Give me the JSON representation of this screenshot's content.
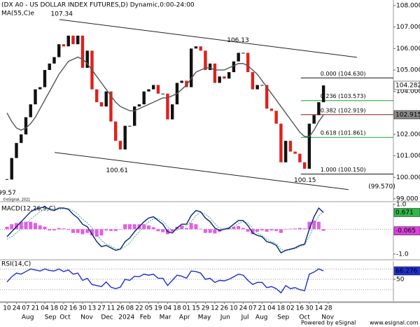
{
  "chart_data": [
    {
      "type": "line",
      "title": "(DX A0 - US DOLLAR INDEX FUTURES,D) Dynamic,0:00-24:00",
      "subtitle": "MA(55,C)e",
      "xlim": [
        -1.48,
        81.8
      ],
      "ylim": [
        98.9,
        108.26
      ],
      "yticks": [
        {
          "value": 99,
          "label": "99.000"
        },
        {
          "value": 100,
          "label": "100.000"
        },
        {
          "value": 101,
          "label": "101.000"
        },
        {
          "value": 102,
          "label": "102.000"
        },
        {
          "value": 103,
          "label": "103.000"
        },
        {
          "value": 104,
          "label": "104.000"
        },
        {
          "value": 105,
          "label": "105.000"
        },
        {
          "value": 106,
          "label": "106.000"
        },
        {
          "value": 107,
          "label": "107.000"
        },
        {
          "value": 108,
          "label": "108.000"
        }
      ],
      "xticks": [
        {
          "value": 0,
          "label": "10"
        },
        {
          "value": 2,
          "label": "24"
        },
        {
          "value": 4,
          "label": "07"
        },
        {
          "value": 6,
          "label": "21"
        },
        {
          "value": 8,
          "label": "04"
        },
        {
          "value": 10,
          "label": "18"
        },
        {
          "value": 12,
          "label": "02"
        },
        {
          "value": 14,
          "label": "16"
        },
        {
          "value": 16,
          "label": "30"
        },
        {
          "value": 18,
          "label": "13"
        },
        {
          "value": 20,
          "label": "27"
        },
        {
          "value": 22,
          "label": "11"
        },
        {
          "value": 24,
          "label": "26"
        },
        {
          "value": 26,
          "label": "08"
        },
        {
          "value": 28,
          "label": "22"
        },
        {
          "value": 30,
          "label": "05"
        },
        {
          "value": 32,
          "label": "19"
        },
        {
          "value": 34,
          "label": "04"
        },
        {
          "value": 36,
          "label": "18"
        },
        {
          "value": 38,
          "label": "01"
        },
        {
          "value": 40,
          "label": "15"
        },
        {
          "value": 42,
          "label": "29"
        },
        {
          "value": 44,
          "label": "12"
        },
        {
          "value": 46,
          "label": "26"
        },
        {
          "value": 48,
          "label": "10"
        },
        {
          "value": 50,
          "label": "24"
        },
        {
          "value": 52,
          "label": "07"
        },
        {
          "value": 54,
          "label": "21"
        },
        {
          "value": 56,
          "label": "04"
        },
        {
          "value": 58,
          "label": "18"
        },
        {
          "value": 60,
          "label": "02"
        },
        {
          "value": 62,
          "label": "16"
        },
        {
          "value": 64,
          "label": "30"
        },
        {
          "value": 66,
          "label": "14"
        },
        {
          "value": 68,
          "label": "28"
        }
      ],
      "month_labels": [
        {
          "value": 4.4,
          "label": "Aug"
        },
        {
          "value": 9.2,
          "label": "Sep"
        },
        {
          "value": 12.3,
          "label": "Oct"
        },
        {
          "value": 16.9,
          "label": "Nov"
        },
        {
          "value": 21.2,
          "label": "Dec"
        },
        {
          "value": 25.3,
          "label": "2024"
        },
        {
          "value": 29.3,
          "label": "Feb"
        },
        {
          "value": 33.5,
          "label": "Mar"
        },
        {
          "value": 37.6,
          "label": "Apr"
        },
        {
          "value": 41.8,
          "label": "May"
        },
        {
          "value": 46.2,
          "label": "Jun"
        },
        {
          "value": 50.4,
          "label": "Jul"
        },
        {
          "value": 53.9,
          "label": "Aug"
        },
        {
          "value": 58.5,
          "label": "Sep"
        },
        {
          "value": 63,
          "label": "Oct"
        },
        {
          "value": 67.9,
          "label": "Nov"
        }
      ],
      "x": [
        0,
        1,
        2,
        3,
        4,
        5,
        6,
        7,
        8,
        9,
        10,
        11,
        12,
        13,
        14,
        15,
        16,
        17,
        18,
        19,
        20,
        21,
        22,
        23,
        24,
        25,
        26,
        27,
        28,
        29,
        30,
        31,
        32,
        33,
        34,
        35,
        36,
        37,
        38,
        39,
        40,
        41,
        42,
        43,
        44,
        45,
        46,
        47,
        48,
        49,
        50,
        51,
        52,
        53,
        54,
        55,
        56,
        57,
        58,
        59,
        60,
        61,
        62,
        63,
        64,
        65,
        66,
        67
      ],
      "series": [
        {
          "style": "candles",
          "up_color": "#111111",
          "down_color": "#e0201c",
          "box_color": "#ffffff",
          "box_text": "#000000",
          "last_label": "104.282",
          "values": [
            99.9,
            100.9,
            101.6,
            102.0,
            102.8,
            103.4,
            104.1,
            104.2,
            105.0,
            105.3,
            105.6,
            106.2,
            106.1,
            106.6,
            106.2,
            106.6,
            105.1,
            105.9,
            104.1,
            103.5,
            103.3,
            104.0,
            102.6,
            101.7,
            101.3,
            102.4,
            102.4,
            103.3,
            103.4,
            104.0,
            104.1,
            104.3,
            103.9,
            103.9,
            102.7,
            103.4,
            104.4,
            104.5,
            104.2,
            106.0,
            106.1,
            105.9,
            105.0,
            105.3,
            104.4,
            104.7,
            104.6,
            104.9,
            105.4,
            105.8,
            105.8,
            104.9,
            104.1,
            104.3,
            104.3,
            103.2,
            103.1,
            102.5,
            100.7,
            101.7,
            101.2,
            101.1,
            100.7,
            100.4,
            102.5,
            102.9,
            103.5,
            104.282
          ]
        },
        {
          "style": "line",
          "color": "#555555",
          "box_color": "#8a8a8a",
          "box_text": "#ffffff",
          "last_label": "102.915",
          "values": [
            103.0,
            102.6,
            102.3,
            102.2,
            102.3,
            102.5,
            102.8,
            103.2,
            103.6,
            104.0,
            104.4,
            104.8,
            105.1,
            105.4,
            105.5,
            105.6,
            105.5,
            105.3,
            105.0,
            104.7,
            104.4,
            104.1,
            103.8,
            103.5,
            103.3,
            103.2,
            103.1,
            103.1,
            103.2,
            103.3,
            103.4,
            103.5,
            103.6,
            103.7,
            103.7,
            103.8,
            103.9,
            104.1,
            104.3,
            104.6,
            104.9,
            105.0,
            105.1,
            105.1,
            105.0,
            105.0,
            105.0,
            105.1,
            105.2,
            105.3,
            105.3,
            105.2,
            105.0,
            104.8,
            104.5,
            104.2,
            103.9,
            103.6,
            103.3,
            103.0,
            102.7,
            102.4,
            102.1,
            101.9,
            101.9,
            102.2,
            102.6,
            102.915
          ]
        }
      ],
      "trendlines": [
        {
          "x": [
            11.1,
            74.1
          ],
          "y": [
            107.35,
            105.59
          ],
          "color": "#222222"
        },
        {
          "x": [
            10.1,
            72.3
          ],
          "y": [
            101.16,
            99.43
          ],
          "color": "#222222"
        }
      ],
      "fib_start": 62.2,
      "fib": [
        {
          "value": 104.63,
          "label": "0.000 (104.630)",
          "color": "#111111"
        },
        {
          "value": 103.573,
          "label": "0.236 (103.573)",
          "color": "#1e9e3a"
        },
        {
          "value": 102.919,
          "label": "0.382 (102.919)",
          "color": "#8b1a1a"
        },
        {
          "value": 101.861,
          "label": "0.618 (101.861)",
          "color": "#1e9e3a"
        },
        {
          "value": 100.15,
          "label": "1.000 (100.150)",
          "color": "#111111"
        }
      ],
      "annotations": [
        {
          "label": "107.34",
          "value": 107.34,
          "x": 11.6,
          "place": "above"
        },
        {
          "label": "106.13",
          "value": 106.13,
          "x": 48.9,
          "place": "above"
        },
        {
          "label": "100.61",
          "value": 100.61,
          "x": 23.3,
          "place": "below"
        },
        {
          "label": "100.15",
          "value": 100.15,
          "x": 63.1,
          "place": "below"
        },
        {
          "label": "99.57",
          "value": 99.57,
          "x": 0,
          "place": "below"
        },
        {
          "label": "(99.570)",
          "value": 99.57,
          "x": 76.5,
          "place": "at"
        }
      ],
      "copyright": "©eSignal, 2021"
    },
    {
      "type": "line",
      "title": "MACD(12,26,9,C)",
      "xlim": [
        -1.48,
        81.8
      ],
      "ylim": [
        -1.2,
        1.05
      ],
      "yticks": [
        {
          "value": 1,
          "label": "1.0"
        },
        {
          "value": -1,
          "label": "-1.0"
        }
      ],
      "levels": [
        0
      ],
      "x": [
        0,
        1,
        2,
        3,
        4,
        5,
        6,
        7,
        8,
        9,
        10,
        11,
        12,
        13,
        14,
        15,
        16,
        17,
        18,
        19,
        20,
        21,
        22,
        23,
        24,
        25,
        26,
        27,
        28,
        29,
        30,
        31,
        32,
        33,
        34,
        35,
        36,
        37,
        38,
        39,
        40,
        41,
        42,
        43,
        44,
        45,
        46,
        47,
        48,
        49,
        50,
        51,
        52,
        53,
        54,
        55,
        56,
        57,
        58,
        59,
        60,
        61,
        62,
        63,
        64,
        65,
        66,
        67
      ],
      "series": [
        {
          "style": "bars",
          "color": "#e040e0",
          "box_color": "#e040e0",
          "box_text": "#ffffff",
          "last_label": "-0.065",
          "values": [
            0.1,
            0.2,
            0.25,
            0.3,
            0.3,
            0.3,
            0.25,
            0.15,
            0.1,
            -0.05,
            -0.05,
            0.05,
            0.03,
            -0.03,
            -0.15,
            -0.15,
            -0.2,
            -0.15,
            -0.25,
            -0.3,
            -0.25,
            -0.05,
            -0.07,
            -0.07,
            0.0,
            0.2,
            0.2,
            0.2,
            0.2,
            0.2,
            0.15,
            0.08,
            -0.08,
            -0.12,
            -0.2,
            -0.1,
            0.1,
            0.15,
            0.05,
            0.25,
            0.2,
            0.02,
            -0.15,
            -0.15,
            -0.17,
            -0.1,
            0.0,
            0.05,
            0.1,
            0.13,
            0.05,
            -0.1,
            -0.2,
            -0.1,
            -0.05,
            -0.1,
            -0.05,
            -0.07,
            -0.15,
            0.0,
            0.02,
            0.03,
            0.05,
            0.03,
            0.3,
            0.35,
            0.3,
            -0.065
          ]
        },
        {
          "style": "dotted",
          "color": "#3cb371",
          "values": [
            -0.4,
            -0.3,
            -0.15,
            0.0,
            0.2,
            0.4,
            0.55,
            0.7,
            0.8,
            0.85,
            0.8,
            0.8,
            0.82,
            0.83,
            0.75,
            0.6,
            0.4,
            0.25,
            0.05,
            -0.2,
            -0.45,
            -0.6,
            -0.68,
            -0.78,
            -0.8,
            -0.7,
            -0.55,
            -0.3,
            -0.1,
            0.1,
            0.3,
            0.42,
            0.43,
            0.32,
            0.1,
            -0.05,
            -0.05,
            0.05,
            0.15,
            0.3,
            0.55,
            0.68,
            0.6,
            0.45,
            0.22,
            0.05,
            0.0,
            0.0,
            0.1,
            0.22,
            0.3,
            0.25,
            0.05,
            -0.15,
            -0.25,
            -0.4,
            -0.5,
            -0.58,
            -0.8,
            -0.85,
            -0.82,
            -0.78,
            -0.7,
            -0.63,
            -0.3,
            0.15,
            0.55,
            0.7
          ]
        },
        {
          "style": "line",
          "color": "#0a1f7a",
          "box_color": "#2fb84a",
          "box_text": "#ffffff",
          "last_label": "0.671",
          "values": [
            -0.3,
            -0.1,
            0.1,
            0.3,
            0.5,
            0.7,
            0.8,
            0.85,
            0.9,
            0.8,
            0.75,
            0.85,
            0.85,
            0.8,
            0.6,
            0.45,
            0.2,
            0.1,
            -0.2,
            -0.5,
            -0.7,
            -0.65,
            -0.75,
            -0.85,
            -0.8,
            -0.5,
            -0.35,
            -0.1,
            0.1,
            0.3,
            0.45,
            0.5,
            0.35,
            0.2,
            -0.1,
            -0.15,
            0.05,
            0.2,
            0.2,
            0.55,
            0.75,
            0.7,
            0.45,
            0.3,
            0.05,
            -0.05,
            0.0,
            0.05,
            0.2,
            0.35,
            0.35,
            0.15,
            -0.15,
            -0.25,
            -0.3,
            -0.5,
            -0.55,
            -0.65,
            -0.95,
            -0.85,
            -0.8,
            -0.75,
            -0.65,
            -0.6,
            0.0,
            0.5,
            0.85,
            0.671
          ]
        }
      ]
    },
    {
      "type": "line",
      "title": "RSI(14,C)",
      "xlim": [
        -1.48,
        81.8
      ],
      "ylim": [
        8,
        85
      ],
      "yticks": [
        50
      ],
      "levels": [
        30,
        50,
        70
      ],
      "x": [
        0,
        1,
        2,
        3,
        4,
        5,
        6,
        7,
        8,
        9,
        10,
        11,
        12,
        13,
        14,
        15,
        16,
        17,
        18,
        19,
        20,
        21,
        22,
        23,
        24,
        25,
        26,
        27,
        28,
        29,
        30,
        31,
        32,
        33,
        34,
        35,
        36,
        37,
        38,
        39,
        40,
        41,
        42,
        43,
        44,
        45,
        46,
        47,
        48,
        49,
        50,
        51,
        52,
        53,
        54,
        55,
        56,
        57,
        58,
        59,
        60,
        61,
        62,
        63,
        64,
        65,
        66,
        67
      ],
      "series": [
        {
          "style": "line",
          "color": "#1f2fd0",
          "box_color": "#1f2fd0",
          "box_text": "#ffffff",
          "last_label": "66.276",
          "values": [
            45,
            55,
            62,
            60,
            65,
            70,
            68,
            66,
            70,
            67,
            66,
            70,
            65,
            68,
            60,
            62,
            48,
            52,
            40,
            38,
            36,
            45,
            35,
            32,
            35,
            50,
            48,
            56,
            55,
            60,
            58,
            60,
            52,
            52,
            38,
            48,
            58,
            56,
            52,
            66,
            65,
            62,
            50,
            52,
            44,
            48,
            47,
            50,
            55,
            60,
            58,
            48,
            40,
            44,
            44,
            34,
            36,
            32,
            24,
            38,
            32,
            34,
            30,
            28,
            60,
            64,
            70,
            66.276
          ]
        }
      ]
    }
  ],
  "footer": {
    "powered": "Powered by eSignal",
    "site": "www.esignal.com"
  }
}
